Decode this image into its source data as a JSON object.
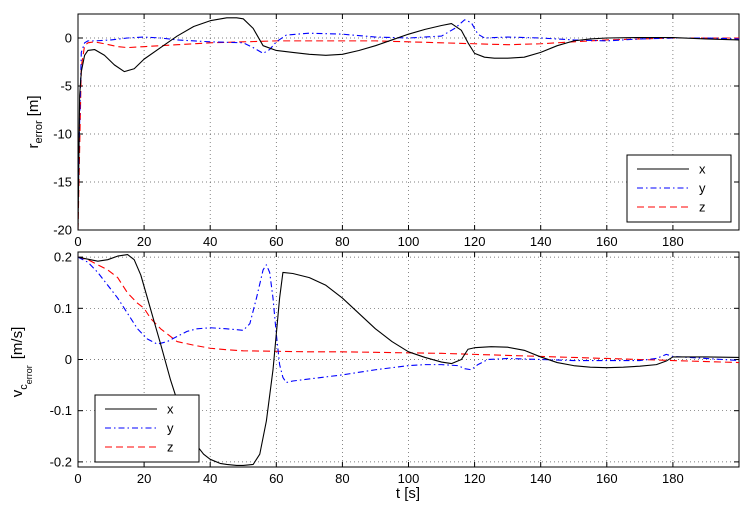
{
  "chart_data": [
    {
      "type": "line",
      "xlabel": "",
      "ylabel": "r",
      "ylabel_subscript": "error",
      "ylabel_unit": "[m]",
      "xlim": [
        0,
        200
      ],
      "ylim": [
        -20,
        2.5
      ],
      "xticks": [
        0,
        20,
        40,
        60,
        80,
        100,
        120,
        140,
        160,
        180
      ],
      "xtick_labels": [
        "0",
        "20",
        "40",
        "60",
        "80",
        "100",
        "120",
        "140",
        "160",
        "180"
      ],
      "yticks": [
        -20,
        -15,
        -10,
        -5,
        0
      ],
      "ytick_labels": [
        "-20",
        "-15",
        "-10",
        "-5",
        "0"
      ],
      "grid": true,
      "legend_position": "bottom-right",
      "series": [
        {
          "name": "x",
          "color": "#000000",
          "style": "solid",
          "x": [
            0,
            0.5,
            1,
            2,
            3,
            5,
            8,
            11,
            14,
            17,
            20,
            25,
            30,
            35,
            40,
            45,
            48,
            50,
            53,
            56,
            60,
            65,
            70,
            75,
            80,
            85,
            90,
            95,
            100,
            105,
            110,
            113,
            116,
            118,
            120,
            123,
            126,
            130,
            135,
            140,
            145,
            150,
            155,
            160,
            170,
            180,
            190,
            200
          ],
          "y": [
            -20,
            -6,
            -3.5,
            -1.8,
            -1.3,
            -1.2,
            -1.8,
            -2.8,
            -3.5,
            -3.2,
            -2.2,
            -1.0,
            0.2,
            1.2,
            1.8,
            2.1,
            2.1,
            2.0,
            1.0,
            -0.8,
            -1.3,
            -1.5,
            -1.7,
            -1.8,
            -1.7,
            -1.3,
            -0.8,
            -0.2,
            0.4,
            0.9,
            1.3,
            1.5,
            0.8,
            -0.5,
            -1.6,
            -2.0,
            -2.1,
            -2.1,
            -2.0,
            -1.5,
            -0.8,
            -0.3,
            -0.1,
            0.0,
            0.05,
            0.05,
            -0.1,
            -0.2
          ]
        },
        {
          "name": "y",
          "color": "#0000ff",
          "style": "dashdot",
          "x": [
            0,
            1,
            2,
            3,
            5,
            10,
            15,
            20,
            25,
            30,
            40,
            50,
            53,
            56,
            58,
            60,
            63,
            70,
            80,
            90,
            100,
            110,
            114,
            117,
            119,
            121,
            123,
            130,
            140,
            150,
            160,
            170,
            180,
            190,
            200
          ],
          "y": [
            -16,
            -1.5,
            -0.5,
            -0.3,
            -0.3,
            -0.2,
            0.0,
            0.1,
            0.0,
            -0.2,
            -0.4,
            -0.5,
            -1.0,
            -1.6,
            -1.2,
            -0.4,
            0.3,
            0.5,
            0.4,
            0.1,
            0.0,
            0.2,
            1.0,
            1.9,
            1.6,
            0.4,
            0.0,
            0.1,
            0.0,
            -0.2,
            -0.3,
            -0.1,
            0.0,
            0.0,
            -0.1
          ]
        },
        {
          "name": "z",
          "color": "#ff0000",
          "style": "dashed",
          "x": [
            0,
            1,
            2,
            3,
            5,
            8,
            12,
            15,
            20,
            25,
            30,
            40,
            50,
            60,
            70,
            80,
            90,
            100,
            110,
            120,
            130,
            140,
            150,
            160,
            170,
            180,
            190,
            200
          ],
          "y": [
            -20,
            -3,
            -0.8,
            -0.5,
            -0.4,
            -0.6,
            -0.9,
            -1.0,
            -0.9,
            -0.8,
            -0.7,
            -0.5,
            -0.4,
            -0.3,
            -0.3,
            -0.3,
            -0.3,
            -0.4,
            -0.5,
            -0.6,
            -0.7,
            -0.6,
            -0.4,
            -0.2,
            -0.1,
            0.0,
            0.0,
            0.0
          ]
        }
      ]
    },
    {
      "type": "line",
      "xlabel": "t [s]",
      "ylabel": "v",
      "ylabel_subscript": "c",
      "ylabel_subsubscript": "error",
      "ylabel_unit": "[m/s]",
      "xlim": [
        0,
        200
      ],
      "ylim": [
        -0.21,
        0.21
      ],
      "xticks": [
        0,
        20,
        40,
        60,
        80,
        100,
        120,
        140,
        160,
        180
      ],
      "xtick_labels": [
        "0",
        "20",
        "40",
        "60",
        "80",
        "100",
        "120",
        "140",
        "160",
        "180"
      ],
      "yticks": [
        -0.2,
        -0.1,
        0,
        0.1,
        0.2
      ],
      "ytick_labels": [
        "-0.2",
        "-0.1",
        "0",
        "0.1",
        "0.2"
      ],
      "grid": true,
      "legend_position": "bottom-left",
      "series": [
        {
          "name": "x",
          "color": "#000000",
          "style": "solid",
          "x": [
            0,
            3,
            6,
            9,
            12,
            15,
            17,
            19,
            21,
            23,
            25,
            28,
            30,
            33,
            35,
            38,
            40,
            43,
            45,
            48,
            50,
            53,
            55,
            57,
            59,
            61,
            62,
            65,
            70,
            75,
            80,
            85,
            90,
            95,
            100,
            105,
            110,
            113,
            116,
            118,
            120,
            125,
            130,
            135,
            140,
            145,
            150,
            155,
            160,
            165,
            170,
            175,
            178,
            180,
            185,
            190,
            200
          ],
          "y": [
            0.2,
            0.196,
            0.192,
            0.195,
            0.202,
            0.205,
            0.195,
            0.165,
            0.12,
            0.075,
            0.03,
            -0.04,
            -0.08,
            -0.13,
            -0.16,
            -0.185,
            -0.195,
            -0.203,
            -0.205,
            -0.207,
            -0.207,
            -0.205,
            -0.185,
            -0.12,
            -0.02,
            0.12,
            0.17,
            0.168,
            0.16,
            0.145,
            0.12,
            0.09,
            0.06,
            0.035,
            0.015,
            0.004,
            -0.005,
            -0.008,
            0.0,
            0.02,
            0.023,
            0.025,
            0.024,
            0.018,
            0.005,
            -0.006,
            -0.012,
            -0.015,
            -0.016,
            -0.015,
            -0.013,
            -0.01,
            -0.003,
            0.005,
            0.005,
            0.005,
            0.004
          ]
        },
        {
          "name": "y",
          "color": "#0000ff",
          "style": "dashdot",
          "x": [
            0,
            3,
            6,
            9,
            12,
            15,
            18,
            21,
            24,
            27,
            30,
            33,
            36,
            40,
            45,
            50,
            52,
            54,
            56,
            57,
            58,
            59,
            60,
            61,
            62,
            63,
            65,
            70,
            80,
            90,
            100,
            105,
            110,
            115,
            117,
            119,
            121,
            124,
            130,
            140,
            150,
            160,
            170,
            175,
            178,
            180,
            190,
            200
          ],
          "y": [
            0.2,
            0.19,
            0.17,
            0.145,
            0.12,
            0.09,
            0.06,
            0.04,
            0.03,
            0.035,
            0.045,
            0.055,
            0.06,
            0.062,
            0.06,
            0.057,
            0.07,
            0.12,
            0.175,
            0.185,
            0.17,
            0.12,
            0.05,
            -0.01,
            -0.035,
            -0.045,
            -0.042,
            -0.038,
            -0.03,
            -0.02,
            -0.012,
            -0.01,
            -0.01,
            -0.012,
            -0.018,
            -0.02,
            -0.01,
            0.0,
            0.002,
            0.0,
            -0.002,
            -0.002,
            -0.002,
            0.002,
            0.01,
            0.006,
            0.002,
            -0.002
          ]
        },
        {
          "name": "z",
          "color": "#ff0000",
          "style": "dashed",
          "x": [
            0,
            3,
            6,
            9,
            12,
            15,
            18,
            20,
            22,
            25,
            28,
            30,
            35,
            40,
            45,
            50,
            60,
            70,
            80,
            90,
            100,
            110,
            120,
            130,
            140,
            150,
            160,
            170,
            180,
            190,
            200
          ],
          "y": [
            0.2,
            0.195,
            0.185,
            0.175,
            0.16,
            0.13,
            0.11,
            0.1,
            0.08,
            0.06,
            0.045,
            0.035,
            0.028,
            0.022,
            0.019,
            0.017,
            0.016,
            0.015,
            0.015,
            0.014,
            0.013,
            0.012,
            0.01,
            0.008,
            0.006,
            0.004,
            0.002,
            0.0,
            -0.002,
            -0.004,
            -0.006
          ]
        }
      ]
    }
  ]
}
